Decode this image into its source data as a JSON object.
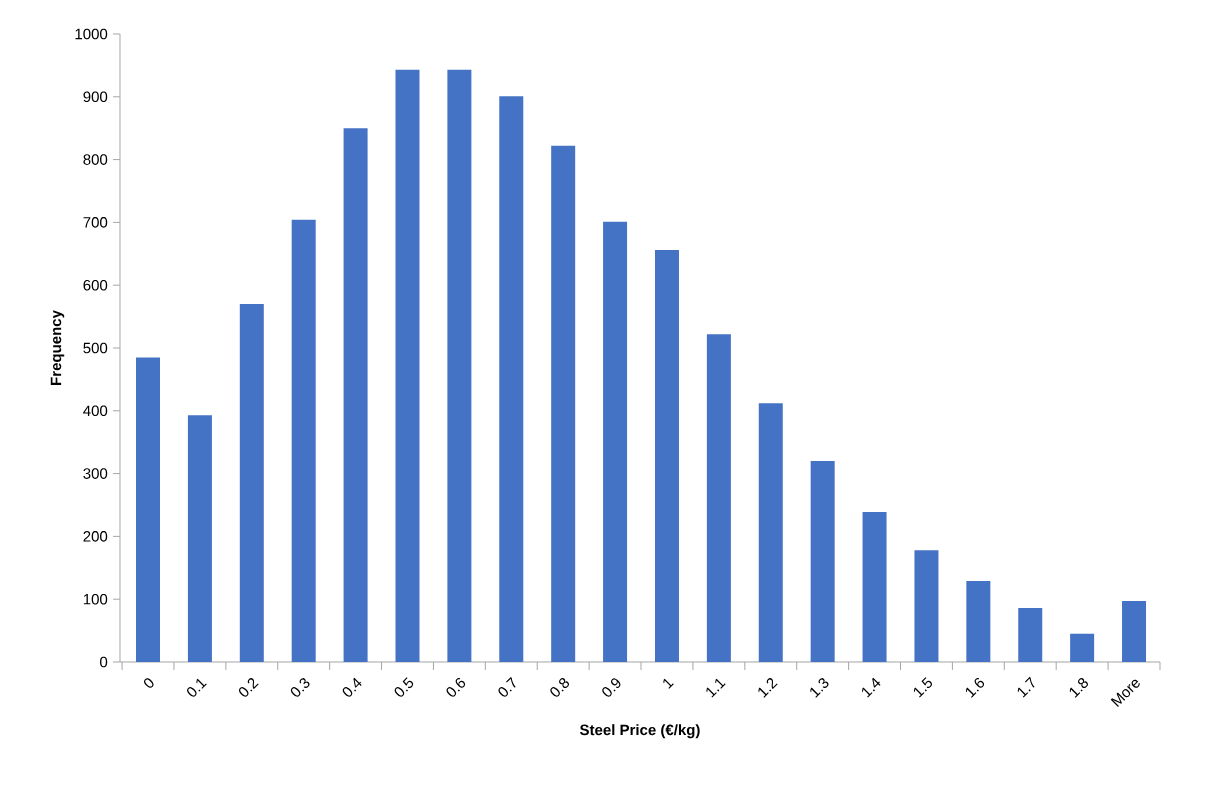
{
  "chart_data": {
    "type": "bar",
    "xlabel": "Steel Price (€/kg)",
    "ylabel": "Frequency",
    "categories": [
      "0",
      "0.1",
      "0.2",
      "0.3",
      "0.4",
      "0.5",
      "0.6",
      "0.7",
      "0.8",
      "0.9",
      "1",
      "1.1",
      "1.2",
      "1.3",
      "1.4",
      "1.5",
      "1.6",
      "1.7",
      "1.8",
      "More"
    ],
    "values": [
      485,
      393,
      570,
      704,
      850,
      943,
      943,
      901,
      822,
      701,
      656,
      522,
      412,
      320,
      239,
      178,
      129,
      86,
      45,
      97
    ],
    "color": "#4472c4",
    "ylim": [
      0,
      1000
    ],
    "yticks": [
      0,
      100,
      200,
      300,
      400,
      500,
      600,
      700,
      800,
      900,
      1000
    ],
    "grid": false
  }
}
